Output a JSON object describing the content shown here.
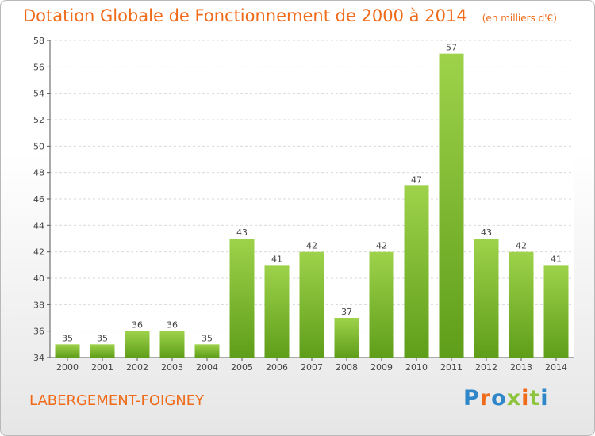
{
  "header": {
    "title": "Dotation Globale de Fonctionnement de 2000 à 2014",
    "unit": "(en milliers d'€)"
  },
  "footer": {
    "commune": "LABERGEMENT-FOIGNEY",
    "logo": "Proxiti"
  },
  "colors": {
    "title": "#ef6b1a",
    "bar_light": "#9ed24b",
    "bar_dark": "#5f9e1a",
    "logo_letters": [
      "#2f86c8",
      "#ef6b1a",
      "#2f86c8",
      "#8cc43c",
      "#ef6b1a",
      "#8cc43c",
      "#2f86c8"
    ]
  },
  "chart_data": {
    "type": "bar",
    "categories": [
      "2000",
      "2001",
      "2002",
      "2003",
      "2004",
      "2005",
      "2006",
      "2007",
      "2008",
      "2009",
      "2010",
      "2011",
      "2012",
      "2013",
      "2014"
    ],
    "values": [
      35,
      35,
      36,
      36,
      35,
      43,
      41,
      42,
      37,
      42,
      47,
      57,
      43,
      42,
      41
    ],
    "ylim": [
      34,
      58
    ],
    "yticks": [
      34,
      36,
      38,
      40,
      42,
      44,
      46,
      48,
      50,
      52,
      54,
      56,
      58
    ],
    "grid": true
  }
}
